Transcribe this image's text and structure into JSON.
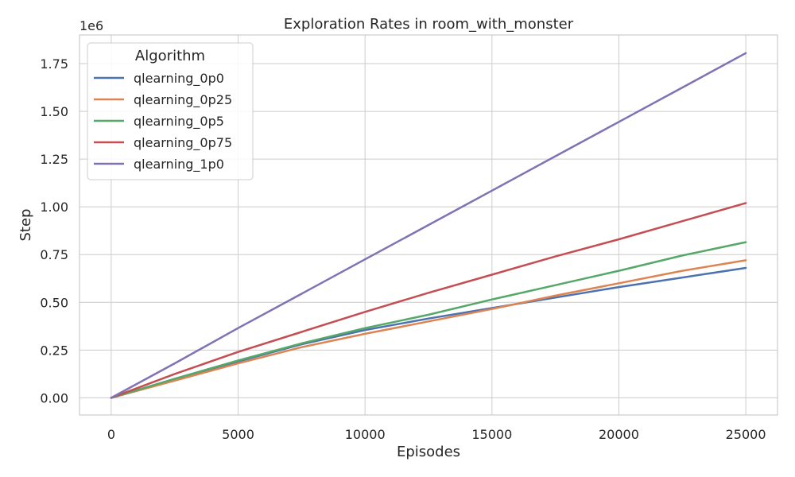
{
  "chart_data": {
    "type": "line",
    "title": "Exploration Rates in room_with_monster",
    "xlabel": "Episodes",
    "ylabel": "Step",
    "y_offset_label": "1e6",
    "xlim": [
      -1250,
      26250
    ],
    "ylim": [
      -0.09,
      1.9
    ],
    "xticks": [
      0,
      5000,
      10000,
      15000,
      20000,
      25000
    ],
    "xtick_labels": [
      "0",
      "5000",
      "10000",
      "15000",
      "20000",
      "25000"
    ],
    "yticks": [
      0.0,
      0.25,
      0.5,
      0.75,
      1.0,
      1.25,
      1.5,
      1.75
    ],
    "ytick_labels": [
      "0.00",
      "0.25",
      "0.50",
      "0.75",
      "1.00",
      "1.25",
      "1.50",
      "1.75"
    ],
    "grid": true,
    "legend_title": "Algorithm",
    "legend_position": "top-left",
    "x": [
      0,
      2500,
      5000,
      7500,
      10000,
      12500,
      15000,
      17500,
      20000,
      22500,
      25000
    ],
    "series": [
      {
        "name": "qlearning_0p0",
        "color": "#4c72b0",
        "values": [
          0,
          0.095,
          0.19,
          0.28,
          0.355,
          0.415,
          0.47,
          0.525,
          0.58,
          0.63,
          0.68
        ]
      },
      {
        "name": "qlearning_0p25",
        "color": "#dd8452",
        "values": [
          0,
          0.09,
          0.18,
          0.265,
          0.335,
          0.4,
          0.465,
          0.535,
          0.6,
          0.665,
          0.72
        ]
      },
      {
        "name": "qlearning_0p5",
        "color": "#55a868",
        "values": [
          0,
          0.1,
          0.195,
          0.285,
          0.365,
          0.435,
          0.515,
          0.59,
          0.665,
          0.745,
          0.815
        ]
      },
      {
        "name": "qlearning_0p75",
        "color": "#c44e52",
        "values": [
          0,
          0.125,
          0.24,
          0.345,
          0.45,
          0.55,
          0.645,
          0.74,
          0.83,
          0.925,
          1.02
        ]
      },
      {
        "name": "qlearning_1p0",
        "color": "#8172b3",
        "values": [
          0,
          0.18,
          0.365,
          0.545,
          0.725,
          0.905,
          1.085,
          1.265,
          1.445,
          1.625,
          1.805
        ]
      }
    ]
  }
}
